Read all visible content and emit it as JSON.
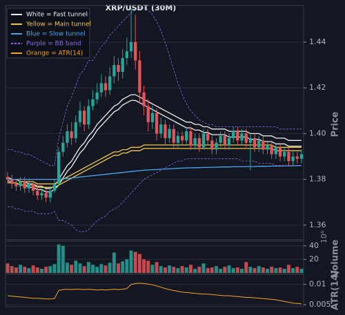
{
  "chart_data": [
    {
      "type": "candlestick",
      "title": "XRP/USDT (30M)",
      "ylabel": "Price",
      "open": [
        1.381,
        1.38,
        1.378,
        1.377,
        1.379,
        1.376,
        1.378,
        1.375,
        1.373,
        1.374,
        1.372,
        1.375,
        1.378,
        1.392,
        1.396,
        1.401,
        1.398,
        1.405,
        1.41,
        1.404,
        1.412,
        1.415,
        1.418,
        1.422,
        1.419,
        1.425,
        1.43,
        1.427,
        1.433,
        1.436,
        1.44,
        1.432,
        1.418,
        1.412,
        1.405,
        1.409,
        1.4,
        1.404,
        1.398,
        1.402,
        1.396,
        1.399,
        1.397,
        1.401,
        1.395,
        1.398,
        1.394,
        1.4,
        1.397,
        1.393,
        1.396,
        1.399,
        1.395,
        1.398,
        1.401,
        1.397,
        1.4,
        1.396,
        1.398,
        1.394,
        1.397,
        1.393,
        1.395,
        1.391,
        1.394,
        1.39,
        1.392,
        1.388,
        1.39,
        1.389
      ],
      "high": [
        1.383,
        1.382,
        1.38,
        1.381,
        1.381,
        1.38,
        1.379,
        1.377,
        1.376,
        1.376,
        1.377,
        1.38,
        1.394,
        1.399,
        1.404,
        1.405,
        1.408,
        1.414,
        1.412,
        1.415,
        1.419,
        1.422,
        1.426,
        1.425,
        1.429,
        1.434,
        1.433,
        1.437,
        1.442,
        1.455,
        1.452,
        1.436,
        1.421,
        1.415,
        1.412,
        1.411,
        1.407,
        1.406,
        1.404,
        1.404,
        1.401,
        1.401,
        1.403,
        1.403,
        1.4,
        1.4,
        1.402,
        1.402,
        1.399,
        1.398,
        1.401,
        1.401,
        1.4,
        1.403,
        1.403,
        1.402,
        1.402,
        1.4,
        1.4,
        1.399,
        1.399,
        1.397,
        1.397,
        1.396,
        1.396,
        1.394,
        1.394,
        1.392,
        1.392,
        1.393
      ],
      "low": [
        1.378,
        1.376,
        1.375,
        1.375,
        1.374,
        1.374,
        1.373,
        1.371,
        1.371,
        1.37,
        1.37,
        1.374,
        1.377,
        1.39,
        1.394,
        1.395,
        1.396,
        1.403,
        1.401,
        1.402,
        1.41,
        1.413,
        1.416,
        1.416,
        1.417,
        1.422,
        1.423,
        1.424,
        1.43,
        1.433,
        1.428,
        1.414,
        1.408,
        1.401,
        1.402,
        1.397,
        1.398,
        1.395,
        1.396,
        1.394,
        1.394,
        1.395,
        1.395,
        1.393,
        1.393,
        1.392,
        1.393,
        1.395,
        1.391,
        1.391,
        1.394,
        1.393,
        1.393,
        1.396,
        1.395,
        1.395,
        1.394,
        1.384,
        1.392,
        1.392,
        1.391,
        1.391,
        1.389,
        1.389,
        1.388,
        1.388,
        1.386,
        1.386,
        1.387,
        1.387
      ],
      "close": [
        1.38,
        1.378,
        1.377,
        1.379,
        1.376,
        1.378,
        1.375,
        1.373,
        1.374,
        1.372,
        1.375,
        1.378,
        1.392,
        1.396,
        1.401,
        1.398,
        1.405,
        1.41,
        1.404,
        1.412,
        1.415,
        1.418,
        1.422,
        1.419,
        1.425,
        1.43,
        1.427,
        1.433,
        1.436,
        1.44,
        1.432,
        1.418,
        1.412,
        1.405,
        1.409,
        1.4,
        1.404,
        1.398,
        1.402,
        1.396,
        1.399,
        1.397,
        1.401,
        1.395,
        1.398,
        1.394,
        1.4,
        1.397,
        1.393,
        1.396,
        1.399,
        1.395,
        1.398,
        1.401,
        1.397,
        1.4,
        1.396,
        1.398,
        1.394,
        1.397,
        1.393,
        1.395,
        1.391,
        1.394,
        1.39,
        1.392,
        1.388,
        1.39,
        1.389,
        1.391
      ],
      "up_color": "#26a69a",
      "down_color": "#e0575b",
      "lines": [
        {
          "color": "#f0f0f0",
          "dash": false,
          "values": [
            1.381,
            1.38,
            1.38,
            1.379,
            1.379,
            1.378,
            1.378,
            1.377,
            1.377,
            1.376,
            1.376,
            1.377,
            1.38,
            1.383,
            1.386,
            1.388,
            1.391,
            1.394,
            1.396,
            1.399,
            1.401,
            1.404,
            1.406,
            1.408,
            1.41,
            1.412,
            1.413,
            1.415,
            1.416,
            1.417,
            1.417,
            1.416,
            1.415,
            1.414,
            1.413,
            1.412,
            1.411,
            1.41,
            1.409,
            1.408,
            1.407,
            1.406,
            1.405,
            1.405,
            1.404,
            1.404,
            1.403,
            1.403,
            1.402,
            1.402,
            1.402,
            1.402,
            1.401,
            1.401,
            1.401,
            1.401,
            1.401,
            1.4,
            1.4,
            1.4,
            1.399,
            1.399,
            1.399,
            1.398,
            1.398,
            1.398,
            1.397,
            1.397,
            1.397,
            1.397
          ]
        },
        {
          "color": "#f0f0f0",
          "dash": false,
          "values": [
            1.3795,
            1.3785,
            1.3785,
            1.3775,
            1.3775,
            1.3765,
            1.3765,
            1.3755,
            1.3755,
            1.3745,
            1.3745,
            1.3755,
            1.3775,
            1.3805,
            1.3835,
            1.3855,
            1.3885,
            1.3915,
            1.3935,
            1.3965,
            1.3985,
            1.4015,
            1.4035,
            1.4055,
            1.4075,
            1.4095,
            1.4105,
            1.4125,
            1.4135,
            1.4145,
            1.4145,
            1.4135,
            1.4125,
            1.4115,
            1.4105,
            1.4095,
            1.4085,
            1.4075,
            1.4065,
            1.4055,
            1.4045,
            1.4035,
            1.4025,
            1.4025,
            1.4015,
            1.4015,
            1.4005,
            1.4005,
            1.3995,
            1.3995,
            1.3995,
            1.3995,
            1.3985,
            1.3985,
            1.3985,
            1.3985,
            1.3985,
            1.3975,
            1.3975,
            1.3975,
            1.3965,
            1.3965,
            1.3965,
            1.3955,
            1.3955,
            1.3955,
            1.3945,
            1.3945,
            1.3945,
            1.3945
          ]
        },
        {
          "color": "#f3c64a",
          "dash": false,
          "values": [
            1.38,
            1.38,
            1.38,
            1.379,
            1.379,
            1.379,
            1.379,
            1.378,
            1.378,
            1.378,
            1.378,
            1.378,
            1.379,
            1.38,
            1.381,
            1.382,
            1.383,
            1.384,
            1.385,
            1.386,
            1.387,
            1.388,
            1.389,
            1.39,
            1.391,
            1.392,
            1.392,
            1.393,
            1.393,
            1.394,
            1.394,
            1.394,
            1.395,
            1.395,
            1.395,
            1.395,
            1.395,
            1.395,
            1.395,
            1.395,
            1.395,
            1.395,
            1.395,
            1.395,
            1.395,
            1.395,
            1.395,
            1.395,
            1.395,
            1.395,
            1.395,
            1.395,
            1.395,
            1.395,
            1.395,
            1.395,
            1.395,
            1.395,
            1.395,
            1.395,
            1.395,
            1.395,
            1.395,
            1.394,
            1.394,
            1.394,
            1.394,
            1.394,
            1.394,
            1.394
          ]
        },
        {
          "color": "#f3c64a",
          "dash": false,
          "values": [
            1.3785,
            1.3785,
            1.3785,
            1.3775,
            1.3775,
            1.3775,
            1.3775,
            1.3765,
            1.3765,
            1.3765,
            1.3765,
            1.3765,
            1.3775,
            1.3785,
            1.3795,
            1.3805,
            1.3815,
            1.3825,
            1.3835,
            1.3845,
            1.3855,
            1.3865,
            1.3875,
            1.3885,
            1.3895,
            1.3905,
            1.3905,
            1.3915,
            1.3915,
            1.3925,
            1.3925,
            1.3925,
            1.3935,
            1.3935,
            1.3935,
            1.3935,
            1.3935,
            1.3935,
            1.3935,
            1.3935,
            1.3935,
            1.3935,
            1.3935,
            1.3935,
            1.3935,
            1.3935,
            1.3935,
            1.3935,
            1.3935,
            1.3935,
            1.3935,
            1.3935,
            1.3935,
            1.3935,
            1.3935,
            1.3935,
            1.3935,
            1.3935,
            1.3935,
            1.3935,
            1.3935,
            1.3935,
            1.3935,
            1.3925,
            1.3925,
            1.3925,
            1.3925,
            1.3925,
            1.3925,
            1.3925
          ]
        },
        {
          "color": "#4ea6f0",
          "dash": false,
          "values": [
            1.38,
            1.38,
            1.38,
            1.38,
            1.38,
            1.38,
            1.38,
            1.38,
            1.38,
            1.38,
            1.38,
            1.38,
            1.38,
            1.3802,
            1.3804,
            1.3806,
            1.3808,
            1.381,
            1.3812,
            1.3814,
            1.3816,
            1.3818,
            1.382,
            1.3822,
            1.3824,
            1.3826,
            1.3828,
            1.383,
            1.3832,
            1.3834,
            1.3836,
            1.3838,
            1.384,
            1.3841,
            1.3842,
            1.3843,
            1.3844,
            1.3845,
            1.3846,
            1.3847,
            1.3848,
            1.3849,
            1.385,
            1.385,
            1.3851,
            1.3851,
            1.3852,
            1.3852,
            1.3853,
            1.3853,
            1.3854,
            1.3854,
            1.3854,
            1.3855,
            1.3855,
            1.3855,
            1.3856,
            1.3856,
            1.3856,
            1.3857,
            1.3857,
            1.3857,
            1.3858,
            1.3858,
            1.3858,
            1.3859,
            1.3859,
            1.3859,
            1.386,
            1.386
          ]
        },
        {
          "color": "#8c6cf0",
          "dash": true,
          "values": [
            1.393,
            1.393,
            1.392,
            1.392,
            1.391,
            1.391,
            1.39,
            1.389,
            1.388,
            1.387,
            1.386,
            1.386,
            1.398,
            1.405,
            1.412,
            1.416,
            1.421,
            1.426,
            1.428,
            1.432,
            1.432,
            1.435,
            1.438,
            1.44,
            1.443,
            1.445,
            1.447,
            1.449,
            1.451,
            1.453,
            1.454,
            1.455,
            1.455,
            1.454,
            1.452,
            1.449,
            1.445,
            1.44,
            1.434,
            1.428,
            1.422,
            1.417,
            1.413,
            1.41,
            1.408,
            1.406,
            1.405,
            1.404,
            1.404,
            1.403,
            1.403,
            1.403,
            1.403,
            1.403,
            1.403,
            1.403,
            1.403,
            1.403,
            1.403,
            1.403,
            1.403,
            1.403,
            1.403,
            1.403,
            1.402,
            1.402,
            1.402,
            1.402,
            1.402,
            1.402
          ]
        },
        {
          "color": "#8c6cf0",
          "dash": true,
          "values": [
            1.368,
            1.368,
            1.367,
            1.367,
            1.366,
            1.366,
            1.366,
            1.365,
            1.365,
            1.365,
            1.365,
            1.366,
            1.362,
            1.362,
            1.361,
            1.36,
            1.358,
            1.357,
            1.357,
            1.358,
            1.36,
            1.362,
            1.363,
            1.364,
            1.366,
            1.367,
            1.368,
            1.37,
            1.372,
            1.374,
            1.376,
            1.378,
            1.38,
            1.381,
            1.382,
            1.383,
            1.384,
            1.385,
            1.386,
            1.387,
            1.388,
            1.388,
            1.389,
            1.389,
            1.389,
            1.389,
            1.389,
            1.389,
            1.389,
            1.389,
            1.389,
            1.389,
            1.389,
            1.389,
            1.389,
            1.388,
            1.388,
            1.388,
            1.388,
            1.387,
            1.387,
            1.387,
            1.387,
            1.386,
            1.386,
            1.386,
            1.386,
            1.386,
            1.386,
            1.386
          ]
        }
      ],
      "legend": [
        {
          "label": "White = Fast tunnel",
          "color": "#f0f0f0",
          "dash": false
        },
        {
          "label": "Yellow = Main tunnel",
          "color": "#f3c64a",
          "dash": false
        },
        {
          "label": "Blue = Slow tunnel",
          "color": "#4ea6f0",
          "dash": false
        },
        {
          "label": "Purple = BB band",
          "color": "#8c6cf0",
          "dash": true
        },
        {
          "label": "Orange = ATR(14)",
          "color": "#f5a623",
          "dash": false
        }
      ],
      "legend_loc": "upper left",
      "ylim": [
        1.3536,
        1.456
      ],
      "yticks": [
        1.36,
        1.38,
        {
          "value": 1.4,
          "label": "1.40"
        },
        1.42,
        1.44
      ],
      "grid": true
    },
    {
      "type": "bar",
      "ylabel": "Volume",
      "offset_label": "10⁶",
      "values": [
        14,
        10,
        8,
        12,
        9,
        7,
        11,
        8,
        6,
        9,
        10,
        13,
        42,
        40,
        15,
        12,
        18,
        14,
        10,
        16,
        12,
        9,
        13,
        11,
        15,
        30,
        14,
        17,
        20,
        33,
        31,
        28,
        20,
        18,
        12,
        16,
        10,
        8,
        11,
        9,
        7,
        10,
        8,
        12,
        6,
        9,
        14,
        7,
        8,
        10,
        6,
        9,
        11,
        7,
        8,
        6,
        16,
        9,
        7,
        10,
        8,
        6,
        9,
        7,
        8,
        6,
        12,
        7,
        9,
        6
      ],
      "ylim": [
        0,
        47
      ],
      "yticks": [
        20,
        40
      ],
      "grid": true
    },
    {
      "type": "line",
      "ylabel": "ATR(14)",
      "color": "#f5a623",
      "values": [
        0.0072,
        0.0071,
        0.007,
        0.0069,
        0.0068,
        0.0067,
        0.0066,
        0.0066,
        0.0065,
        0.0064,
        0.0064,
        0.0065,
        0.0085,
        0.0087,
        0.0088,
        0.0087,
        0.0088,
        0.0088,
        0.0087,
        0.0088,
        0.0087,
        0.0086,
        0.0087,
        0.0086,
        0.0087,
        0.0088,
        0.0087,
        0.0088,
        0.009,
        0.01,
        0.0102,
        0.0103,
        0.0102,
        0.0101,
        0.0099,
        0.0096,
        0.0093,
        0.009,
        0.0087,
        0.0085,
        0.0083,
        0.0081,
        0.008,
        0.0079,
        0.0078,
        0.0077,
        0.0076,
        0.0076,
        0.0075,
        0.0074,
        0.0073,
        0.0072,
        0.0072,
        0.0071,
        0.007,
        0.0069,
        0.0068,
        0.0068,
        0.0067,
        0.0066,
        0.0065,
        0.0064,
        0.0063,
        0.0062,
        0.006,
        0.0058,
        0.0056,
        0.0054,
        0.0053,
        0.0052
      ],
      "ylim": [
        0.0045,
        0.0125
      ],
      "yticks": [
        0.005,
        0.01
      ],
      "grid": true
    }
  ]
}
